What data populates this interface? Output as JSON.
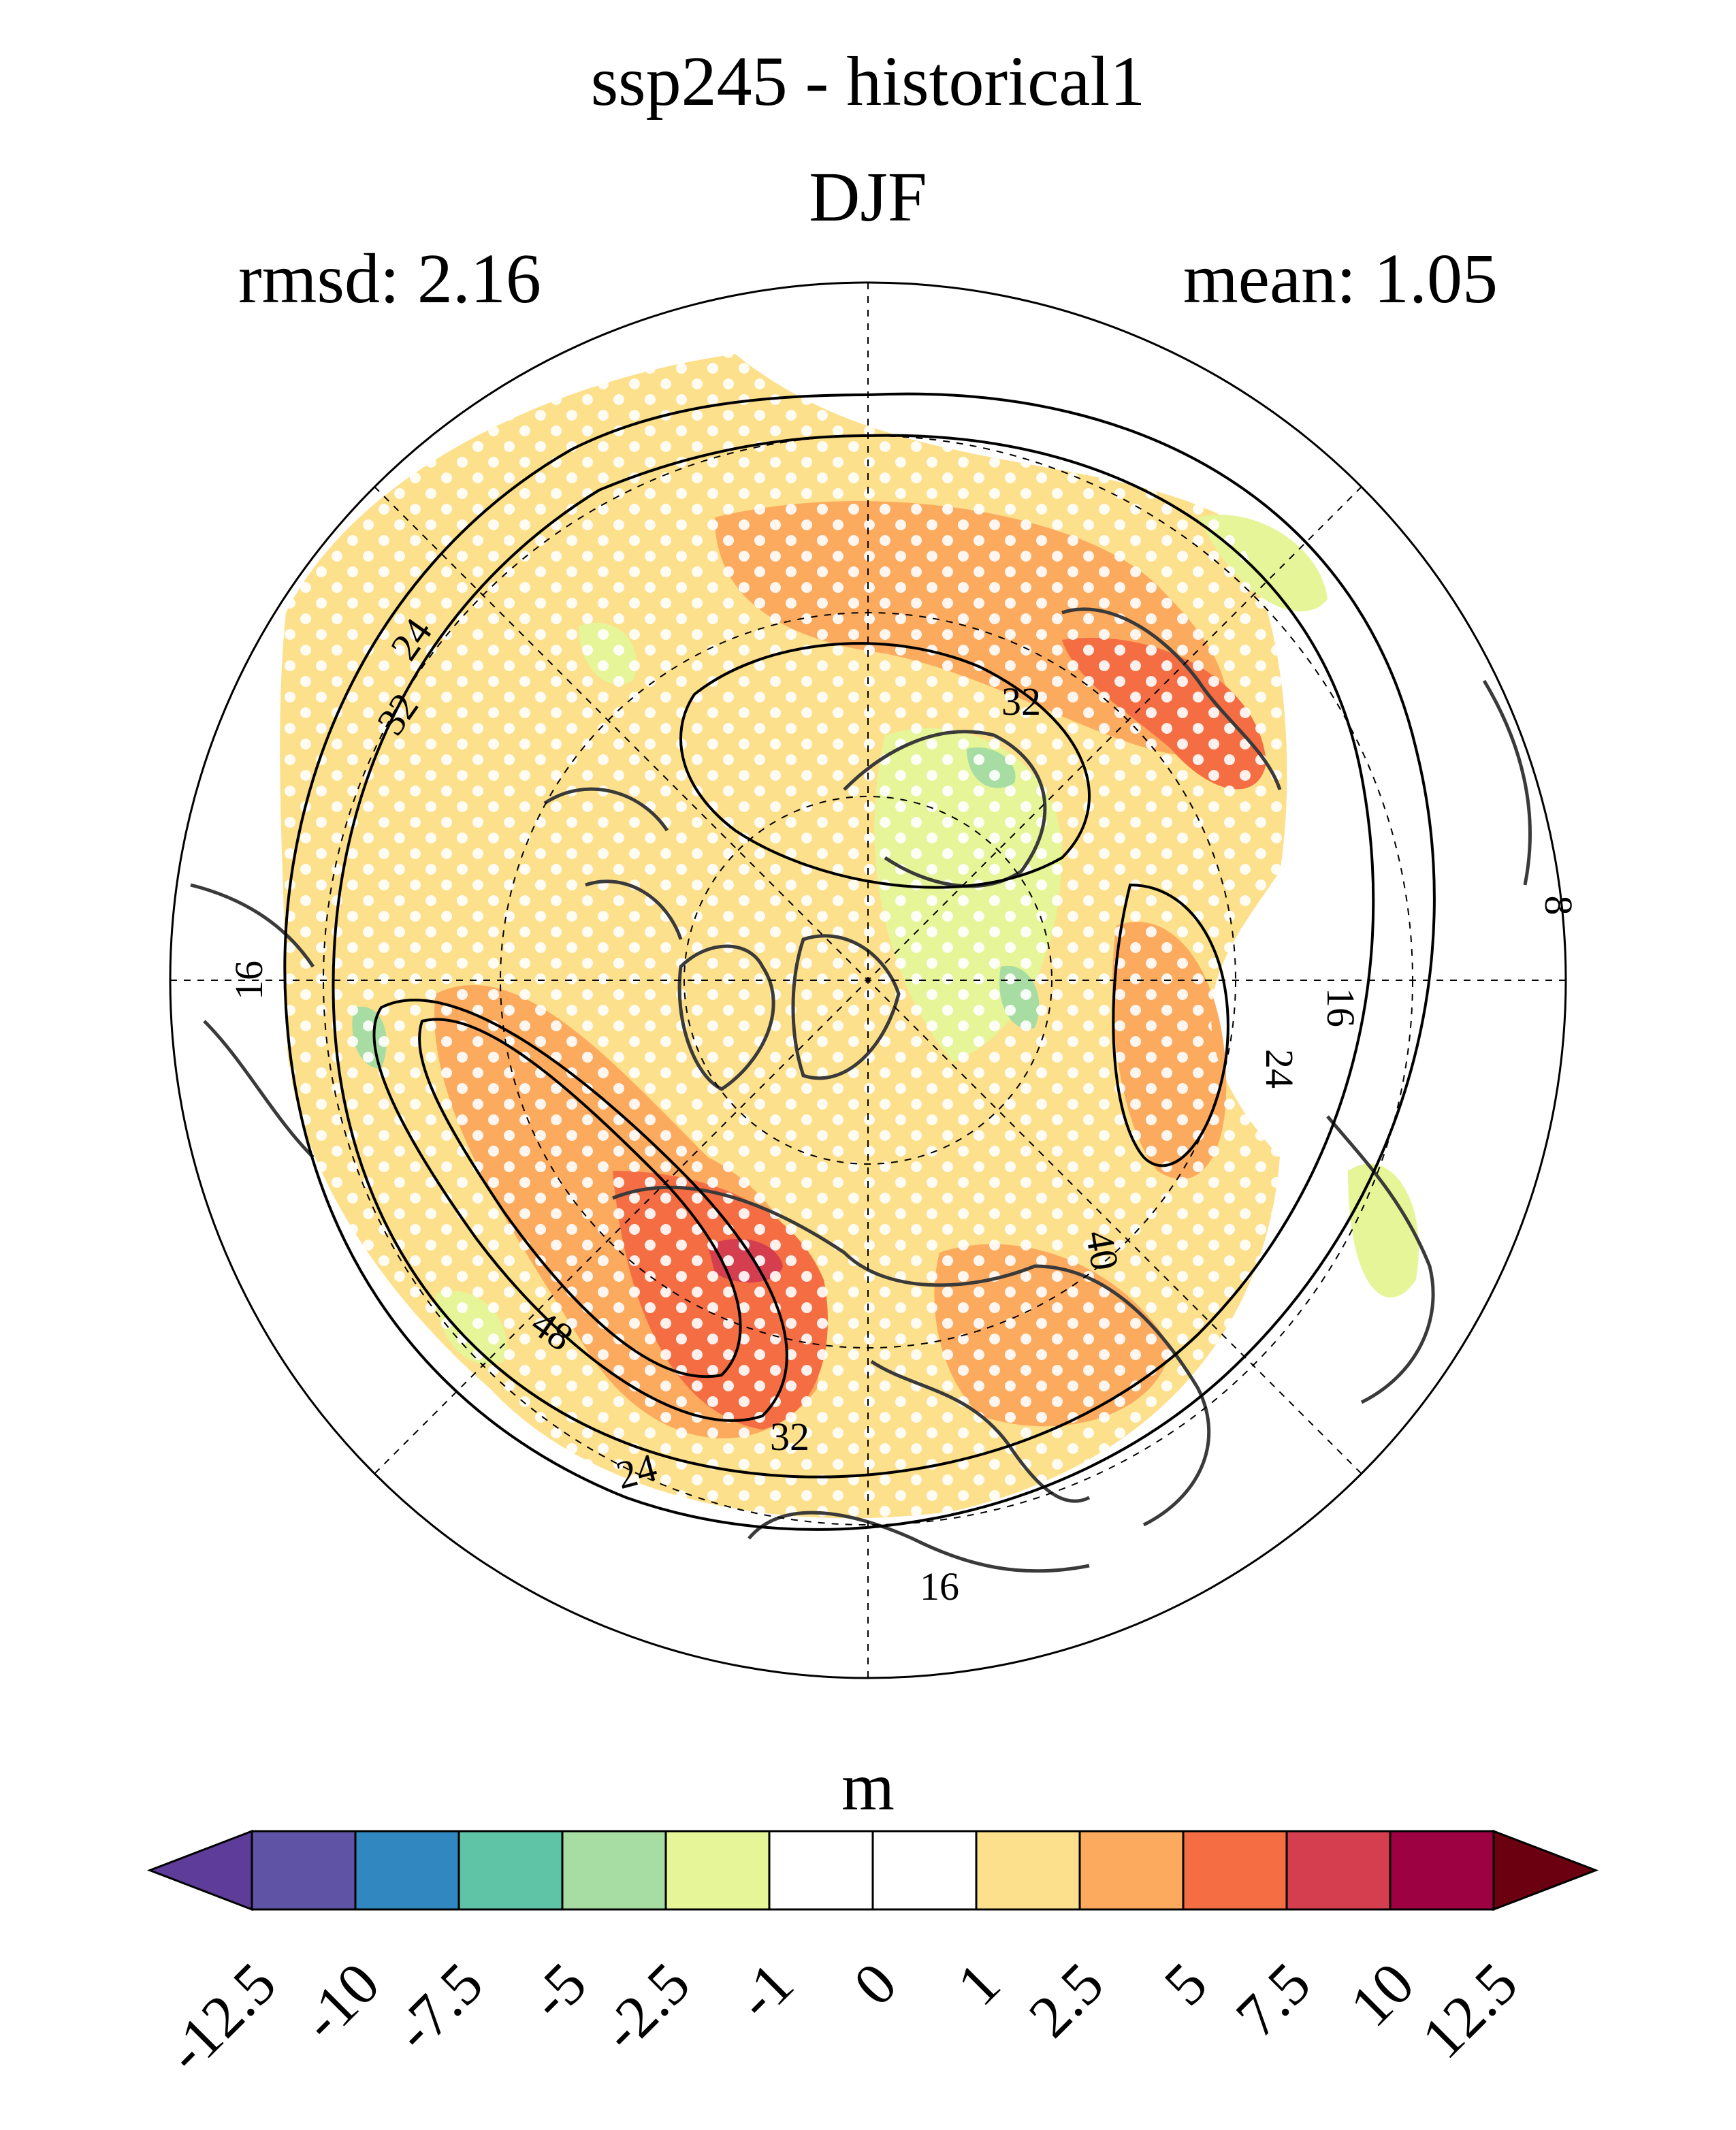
{
  "title": {
    "line1": "ssp245 - historical1",
    "line2": "DJF"
  },
  "stats": {
    "rmsd": "rmsd: 2.16",
    "mean": "mean: 1.05"
  },
  "map": {
    "projection": "north polar stereographic",
    "contour_labels": [
      "24",
      "32",
      "32",
      "16",
      "16",
      "24",
      "40",
      "48",
      "32",
      "24",
      "16",
      "8"
    ],
    "colors": {
      "land_outline": "#3a3a3a",
      "contour": "#000000",
      "grid": "#000000"
    }
  },
  "colorbar": {
    "unit": "m",
    "ticks": [
      "-12.5",
      "-10",
      "-7.5",
      "-5",
      "-2.5",
      "-1",
      "0",
      "1",
      "2.5",
      "5",
      "7.5",
      "10",
      "12.5"
    ],
    "colors": [
      "#5e3c99",
      "#5f53a5",
      "#3187bf",
      "#5fc3a6",
      "#a7dca3",
      "#e6f597",
      "#ffffff",
      "#ffffff",
      "#fde08b",
      "#fbaa5e",
      "#f46d43",
      "#d53e4f",
      "#9e0142",
      "#6b0010"
    ]
  }
}
